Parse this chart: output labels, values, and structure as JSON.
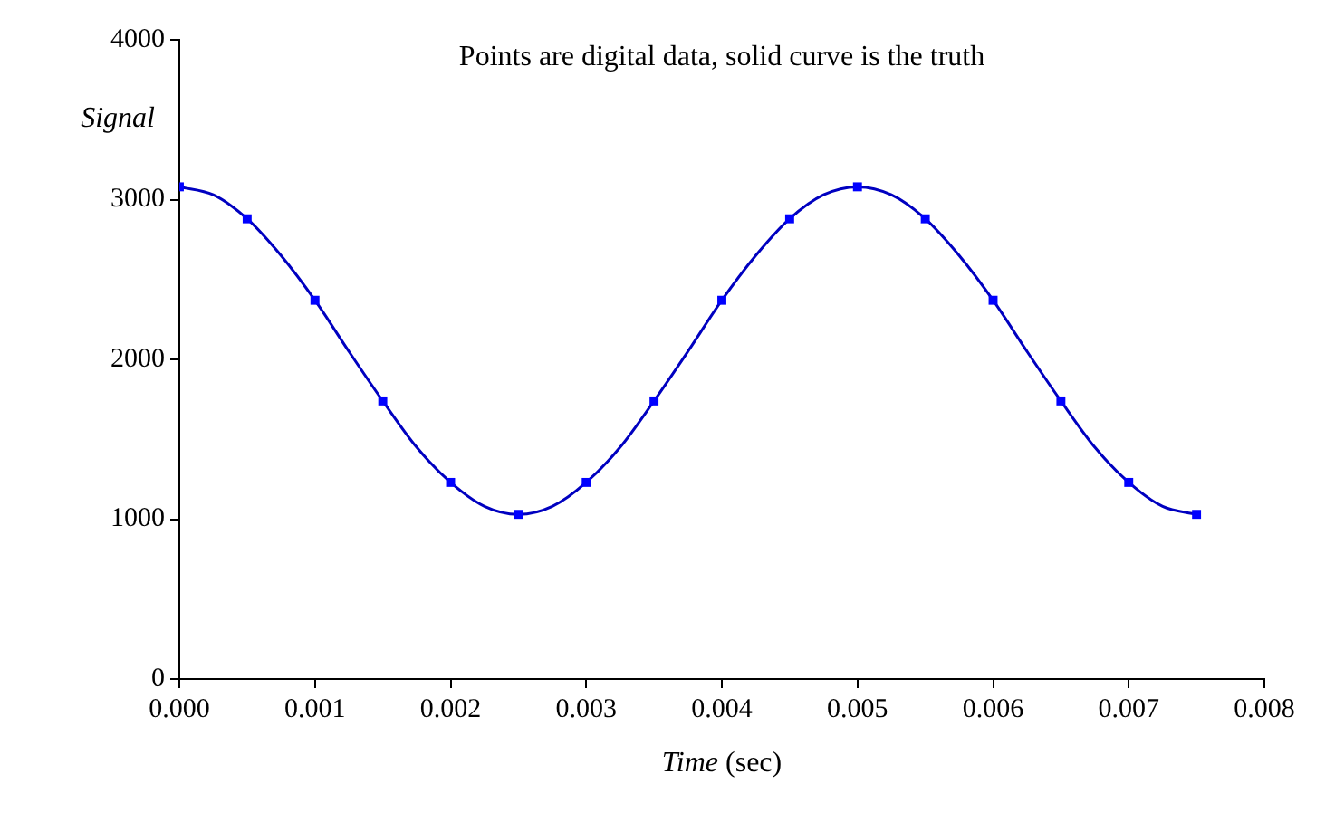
{
  "chart_data": {
    "type": "scatter",
    "title": "Points are digital data, solid curve is the truth",
    "xlabel": "Time (sec)",
    "ylabel": "Signal",
    "xlim": [
      0,
      0.008
    ],
    "xticks": [
      {
        "value": 0,
        "label": "0.000"
      },
      {
        "value": 0.001,
        "label": "0.001"
      },
      {
        "value": 0.002,
        "label": "0.002"
      },
      {
        "value": 0.003,
        "label": "0.003"
      },
      {
        "value": 0.004,
        "label": "0.004"
      },
      {
        "value": 0.005,
        "label": "0.005"
      },
      {
        "value": 0.006,
        "label": "0.006"
      },
      {
        "value": 0.007,
        "label": "0.007"
      },
      {
        "value": 0.008,
        "label": "0.008"
      }
    ],
    "ylim": [
      0,
      4000
    ],
    "yticks": [
      0,
      1000,
      2000,
      3000,
      4000
    ],
    "grid": false,
    "legend": false,
    "series": [
      {
        "type": "line",
        "marker": "none",
        "line_style": "solid",
        "color": "#0000c0",
        "x": [
          0,
          0.00025,
          0.0005,
          0.00075,
          0.001,
          0.00125,
          0.0015,
          0.00175,
          0.002,
          0.00225,
          0.0025,
          0.00275,
          0.003,
          0.00325,
          0.0035,
          0.00375,
          0.004,
          0.00425,
          0.0045,
          0.00475,
          0.005,
          0.00525,
          0.0055,
          0.00575,
          0.006,
          0.00625,
          0.0065,
          0.00675,
          0.007,
          0.00725,
          0.0075
        ],
        "values": [
          3080,
          3030,
          2880,
          2650,
          2370,
          2050,
          1740,
          1450,
          1230,
          1080,
          1030,
          1080,
          1230,
          1450,
          1740,
          2050,
          2370,
          2650,
          2880,
          3030,
          3080,
          3030,
          2880,
          2650,
          2370,
          2050,
          1740,
          1450,
          1230,
          1080,
          1030
        ]
      },
      {
        "type": "scatter",
        "marker": "square",
        "color": "#0000ff",
        "x": [
          0,
          0.0005,
          0.001,
          0.0015,
          0.002,
          0.0025,
          0.003,
          0.0035,
          0.004,
          0.0045,
          0.005,
          0.0055,
          0.006,
          0.0065,
          0.007,
          0.0075
        ],
        "values": [
          3080,
          2880,
          2370,
          1740,
          1230,
          1030,
          1230,
          1740,
          2370,
          2880,
          3080,
          2880,
          2370,
          1740,
          1230,
          1030
        ]
      }
    ]
  }
}
